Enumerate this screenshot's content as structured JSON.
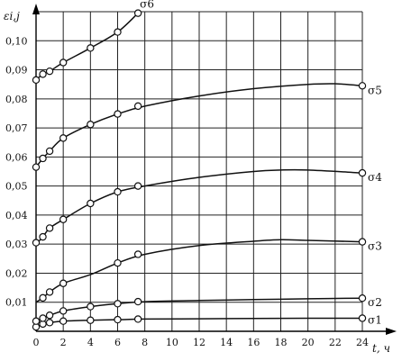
{
  "chart_data": {
    "type": "line",
    "ylabel": "εi,j",
    "xlabel": "t, ч",
    "xlim": [
      0,
      24
    ],
    "ylim": [
      0,
      0.11
    ],
    "x_ticks": [
      0,
      2,
      4,
      6,
      8,
      10,
      12,
      14,
      16,
      18,
      20,
      22,
      24
    ],
    "x_tick_labels": [
      "0",
      "2",
      "4",
      "6",
      "8",
      "10",
      "12",
      "14",
      "16",
      "18",
      "20",
      "22",
      "24"
    ],
    "y_ticks": [
      0.01,
      0.02,
      0.03,
      0.04,
      0.05,
      0.06,
      0.07,
      0.08,
      0.09,
      0.1
    ],
    "y_tick_labels": [
      "0,01",
      "0,02",
      "0,03",
      "0,04",
      "0,05",
      "0,06",
      "0,07",
      "0,08",
      "0,09",
      "0,10"
    ],
    "grid": true,
    "series": [
      {
        "name": "σ1",
        "curve": [
          [
            0,
            0.0015
          ],
          [
            0.5,
            0.0025
          ],
          [
            1,
            0.003
          ],
          [
            2,
            0.0035
          ],
          [
            4,
            0.0038
          ],
          [
            6,
            0.004
          ],
          [
            8,
            0.0042
          ],
          [
            12,
            0.0043
          ],
          [
            16,
            0.0044
          ],
          [
            20,
            0.0045
          ],
          [
            24,
            0.0045
          ]
        ],
        "markers": [
          [
            0,
            0.0015
          ],
          [
            0.5,
            0.0025
          ],
          [
            1,
            0.003
          ],
          [
            2,
            0.0035
          ],
          [
            4,
            0.0038
          ],
          [
            6,
            0.004
          ],
          [
            7.5,
            0.0042
          ],
          [
            24,
            0.0045
          ]
        ]
      },
      {
        "name": "σ2",
        "curve": [
          [
            0,
            0.0035
          ],
          [
            0.5,
            0.0045
          ],
          [
            1,
            0.0055
          ],
          [
            2,
            0.007
          ],
          [
            4,
            0.0085
          ],
          [
            6,
            0.0095
          ],
          [
            8,
            0.0102
          ],
          [
            12,
            0.0106
          ],
          [
            16,
            0.0109
          ],
          [
            20,
            0.0112
          ],
          [
            24,
            0.0114
          ]
        ],
        "markers": [
          [
            0,
            0.0035
          ],
          [
            0.5,
            0.0045
          ],
          [
            1,
            0.0055
          ],
          [
            2,
            0.007
          ],
          [
            4,
            0.0085
          ],
          [
            6,
            0.0095
          ],
          [
            7.5,
            0.0102
          ],
          [
            24,
            0.0114
          ]
        ]
      },
      {
        "name": "σ3",
        "curve": [
          [
            0,
            0.01
          ],
          [
            0.5,
            0.0115
          ],
          [
            1,
            0.0135
          ],
          [
            2,
            0.0165
          ],
          [
            4,
            0.0195
          ],
          [
            6,
            0.0235
          ],
          [
            8,
            0.0265
          ],
          [
            12,
            0.0295
          ],
          [
            16,
            0.031
          ],
          [
            18,
            0.0315
          ],
          [
            20,
            0.0313
          ],
          [
            24,
            0.0308
          ]
        ],
        "markers": [
          [
            0.5,
            0.0115
          ],
          [
            1,
            0.0135
          ],
          [
            2,
            0.0165
          ],
          [
            6,
            0.0235
          ],
          [
            7.5,
            0.0265
          ],
          [
            24,
            0.0308
          ]
        ]
      },
      {
        "name": "σ4",
        "curve": [
          [
            0,
            0.03
          ],
          [
            0.5,
            0.0325
          ],
          [
            1,
            0.0355
          ],
          [
            2,
            0.0385
          ],
          [
            4,
            0.044
          ],
          [
            6,
            0.048
          ],
          [
            8,
            0.05
          ],
          [
            12,
            0.053
          ],
          [
            16,
            0.055
          ],
          [
            18,
            0.0555
          ],
          [
            20,
            0.0555
          ],
          [
            24,
            0.0545
          ]
        ],
        "markers": [
          [
            0,
            0.0305
          ],
          [
            0.5,
            0.0325
          ],
          [
            1,
            0.0355
          ],
          [
            2,
            0.0385
          ],
          [
            4,
            0.044
          ],
          [
            6,
            0.048
          ],
          [
            7.5,
            0.05
          ],
          [
            24,
            0.0545
          ]
        ]
      },
      {
        "name": "σ5",
        "curve": [
          [
            0,
            0.0565
          ],
          [
            0.5,
            0.0595
          ],
          [
            1,
            0.062
          ],
          [
            2,
            0.0665
          ],
          [
            4,
            0.0712
          ],
          [
            6,
            0.0748
          ],
          [
            8,
            0.0775
          ],
          [
            12,
            0.081
          ],
          [
            16,
            0.0835
          ],
          [
            20,
            0.085
          ],
          [
            22,
            0.0852
          ],
          [
            24,
            0.0845
          ]
        ],
        "markers": [
          [
            0,
            0.0565
          ],
          [
            0.5,
            0.0595
          ],
          [
            1,
            0.062
          ],
          [
            2,
            0.0665
          ],
          [
            4,
            0.0712
          ],
          [
            6,
            0.0748
          ],
          [
            7.5,
            0.0775
          ],
          [
            24,
            0.0845
          ]
        ]
      },
      {
        "name": "σ6",
        "curve": [
          [
            0,
            0.0865
          ],
          [
            0.5,
            0.0885
          ],
          [
            1,
            0.0895
          ],
          [
            2,
            0.0925
          ],
          [
            4,
            0.0975
          ],
          [
            6,
            0.103
          ],
          [
            7.5,
            0.1095
          ]
        ],
        "markers": [
          [
            0,
            0.0865
          ],
          [
            0.5,
            0.0885
          ],
          [
            1,
            0.0895
          ],
          [
            2,
            0.0925
          ],
          [
            4,
            0.0975
          ],
          [
            6,
            0.103
          ],
          [
            7.5,
            0.1095
          ]
        ]
      }
    ]
  }
}
